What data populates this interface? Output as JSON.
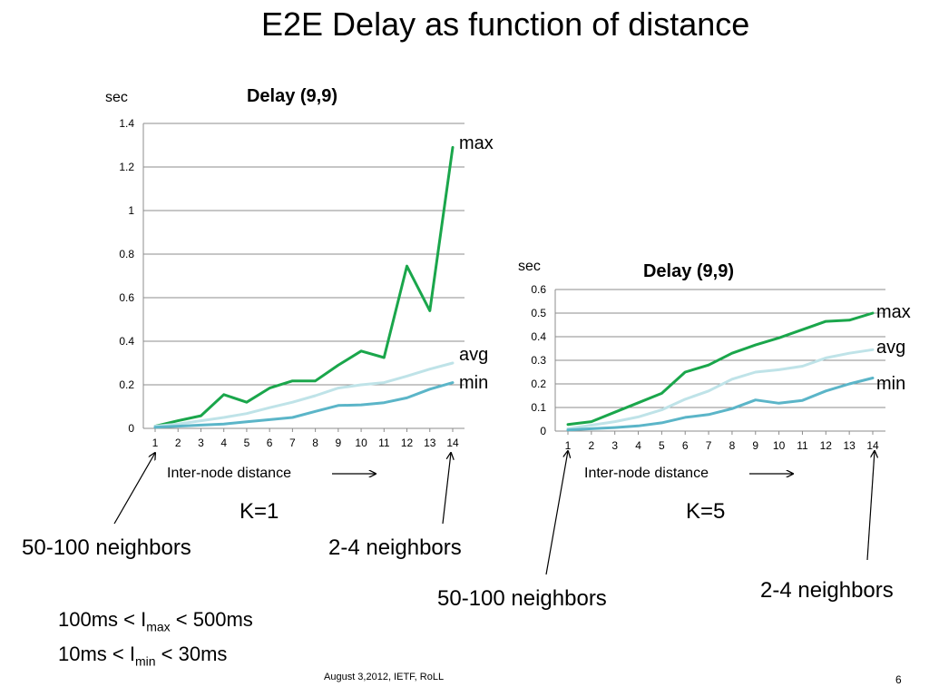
{
  "slide": {
    "title": "E2E Delay as function of distance",
    "footer": "August 3,2012, IETF, RoLL",
    "page_number": "6"
  },
  "colors": {
    "max": "#1aa64b",
    "avg": "#bfe3e8",
    "min": "#5bb5c8",
    "grid": "#8c8c8c"
  },
  "left_panel": {
    "xlabel": "Inter-node distance",
    "k_label": "K=1",
    "callout_left": "50-100 neighbors",
    "callout_right": "2-4 neighbors"
  },
  "right_panel": {
    "xlabel": "Inter-node distance",
    "k_label": "K=5",
    "callout_left": "50-100 neighbors",
    "callout_right": "2-4 neighbors"
  },
  "formulas": {
    "l1_prefix": "100ms < I",
    "l1_sub": "max",
    "l1_suffix": " < 500ms",
    "l2_prefix": "10ms < I",
    "l2_sub": "min",
    "l2_suffix": " < 30ms"
  },
  "chart_data": [
    {
      "type": "line",
      "title": "Delay (9,9)",
      "ylabel": "sec",
      "xlabel": "",
      "categories": [
        "1",
        "2",
        "3",
        "4",
        "5",
        "6",
        "7",
        "8",
        "9",
        "10",
        "11",
        "12",
        "13",
        "14"
      ],
      "ylim": [
        0,
        1.4
      ],
      "yticks": [
        "0",
        "0.2",
        "0.4",
        "0.6",
        "0.8",
        "1",
        "1.2",
        "1.4"
      ],
      "grid": true,
      "series": [
        {
          "name": "max",
          "color": "#1aa64b",
          "width": 3,
          "values": [
            0.01,
            0.035,
            0.058,
            0.155,
            0.12,
            0.185,
            0.218,
            0.218,
            0.29,
            0.355,
            0.325,
            0.745,
            0.54,
            1.29
          ]
        },
        {
          "name": "avg",
          "color": "#bfe3e8",
          "width": 3,
          "values": [
            0.01,
            0.02,
            0.035,
            0.05,
            0.068,
            0.095,
            0.12,
            0.15,
            0.185,
            0.2,
            0.21,
            0.24,
            0.272,
            0.3
          ]
        },
        {
          "name": "min",
          "color": "#5bb5c8",
          "width": 3,
          "values": [
            0.005,
            0.01,
            0.015,
            0.02,
            0.03,
            0.04,
            0.05,
            0.078,
            0.105,
            0.108,
            0.118,
            0.14,
            0.18,
            0.21
          ]
        }
      ]
    },
    {
      "type": "line",
      "title": "Delay (9,9)",
      "ylabel": "sec",
      "xlabel": "",
      "categories": [
        "1",
        "2",
        "3",
        "4",
        "5",
        "6",
        "7",
        "8",
        "9",
        "10",
        "11",
        "12",
        "13",
        "14"
      ],
      "ylim": [
        0,
        0.6
      ],
      "yticks": [
        "0",
        "0.1",
        "0.2",
        "0.3",
        "0.4",
        "0.5",
        "0.6"
      ],
      "grid": true,
      "series": [
        {
          "name": "max",
          "color": "#1aa64b",
          "width": 3,
          "values": [
            0.028,
            0.04,
            0.08,
            0.12,
            0.16,
            0.25,
            0.28,
            0.33,
            0.365,
            0.395,
            0.43,
            0.465,
            0.47,
            0.5
          ]
        },
        {
          "name": "avg",
          "color": "#bfe3e8",
          "width": 3,
          "values": [
            0.01,
            0.025,
            0.04,
            0.06,
            0.09,
            0.135,
            0.17,
            0.22,
            0.25,
            0.26,
            0.275,
            0.31,
            0.33,
            0.345
          ]
        },
        {
          "name": "min",
          "color": "#5bb5c8",
          "width": 3,
          "values": [
            0.005,
            0.01,
            0.015,
            0.022,
            0.035,
            0.058,
            0.07,
            0.095,
            0.132,
            0.118,
            0.13,
            0.17,
            0.2,
            0.225
          ]
        }
      ]
    }
  ]
}
